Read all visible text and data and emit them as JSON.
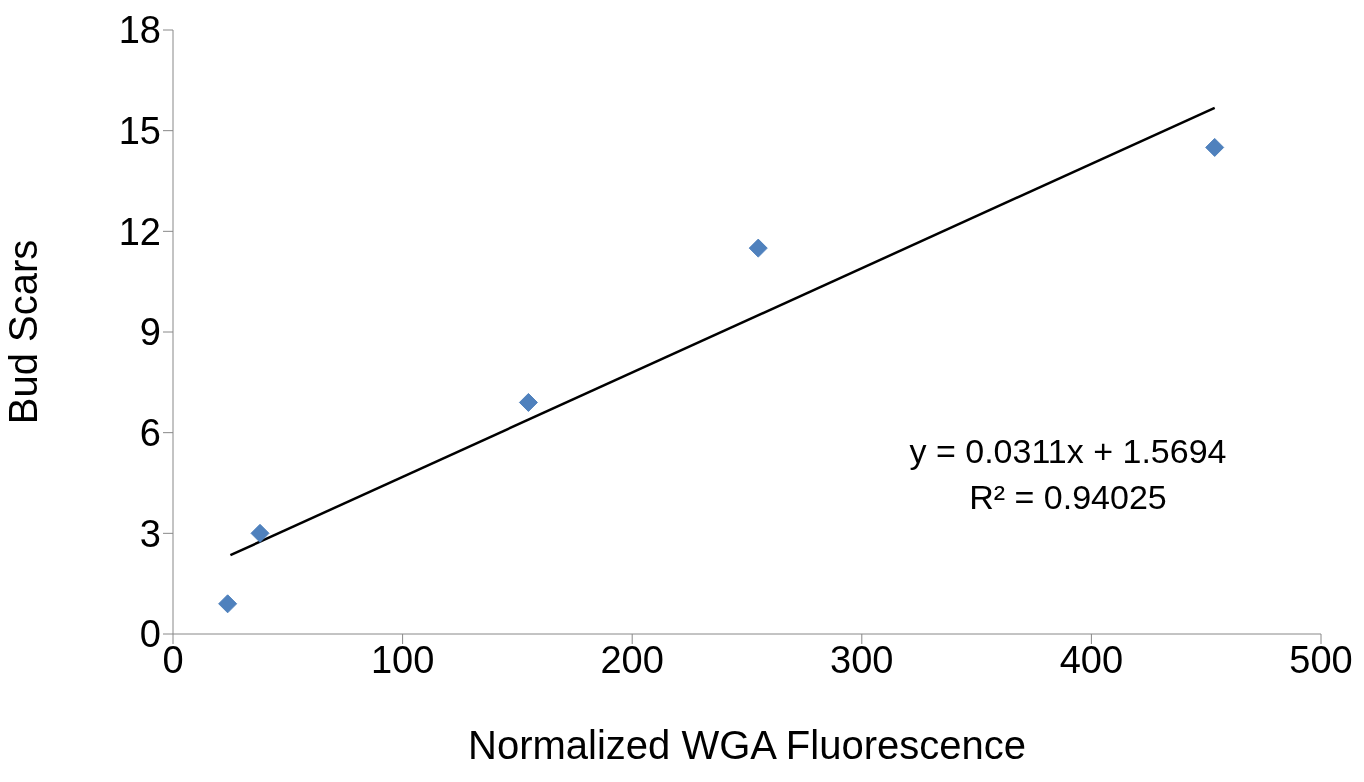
{
  "chart_data": {
    "type": "scatter",
    "xlabel": "Normalized WGA Fluorescence",
    "ylabel": "Bud Scars",
    "xlim": [
      0,
      500
    ],
    "xticks": [
      0,
      100,
      200,
      300,
      400,
      500
    ],
    "ylim": [
      0,
      18
    ],
    "yticks": [
      0,
      3,
      6,
      9,
      12,
      15,
      18
    ],
    "marker": "diamond",
    "series": [
      {
        "color": "#4f81bd",
        "x": [
          23.8,
          37.9,
          154.8,
          254.9,
          453.7
        ],
        "values": [
          0.9,
          3.0,
          6.9,
          11.5,
          14.5
        ]
      },
      {
        "type": "line",
        "color": "#000000",
        "marker": "none",
        "x": [
          25,
          453.7
        ],
        "values": [
          2.35,
          15.68
        ]
      }
    ],
    "annotations": [
      "y = 0.0311x + 1.5694",
      "R² = 0.94025"
    ]
  }
}
